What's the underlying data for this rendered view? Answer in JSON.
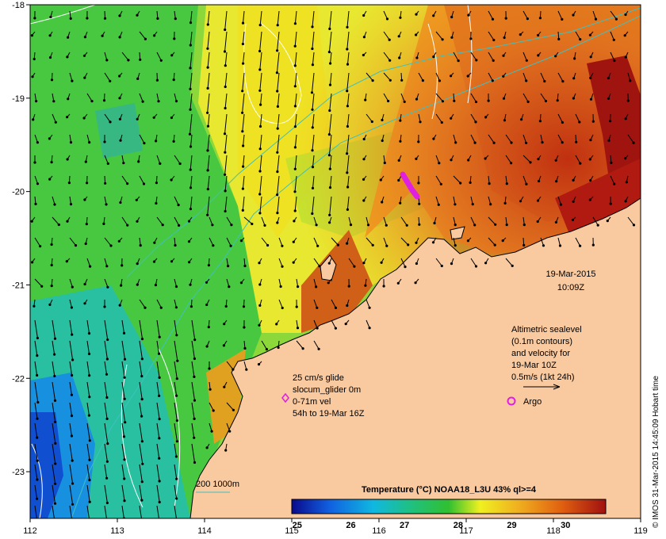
{
  "map": {
    "lon_min": 112,
    "lon_max": 119,
    "lat_min": -23.5,
    "lat_max": -18,
    "lon_ticks": [
      "112",
      "113",
      "114",
      "115",
      "116",
      "117",
      "118",
      "119"
    ],
    "lat_ticks": [
      "-18",
      "-19",
      "-20",
      "-21",
      "-22",
      "-23"
    ]
  },
  "timestamp": {
    "date": "19-Mar-2015",
    "time": "10:09Z"
  },
  "altimetry_note": {
    "line1": "Altimetric sealevel",
    "line2": "(0.1m contours)",
    "line3": "and velocity for",
    "line4": "19-Mar 10Z",
    "line5": "0.5m/s (1kt 24h)"
  },
  "glider_note": {
    "line1": "25 cm/s glide",
    "line2": "slocum_glider 0m",
    "line3": "0-71m vel",
    "line4": "54h to 19-Mar 16Z"
  },
  "argo_label": "Argo",
  "bathymetry_label": "200  1000m",
  "colorbar": {
    "title": "Temperature (°C) NOAA18_L3U 43% ql>=4",
    "ticks": [
      "25",
      "26",
      "27",
      "28",
      "29",
      "30"
    ],
    "stops": [
      "#0a0a8c",
      "#1060e0",
      "#10b8e0",
      "#20c080",
      "#30c030",
      "#f0f020",
      "#f0b020",
      "#e06010",
      "#a01010"
    ]
  },
  "credit": "© IMOS 31-Mar-2015 14:45:09 Hobart time",
  "colors": {
    "land": "#f9c9a0",
    "contour": "#ffffff",
    "bathymetry": "#40c0c0",
    "glider": "#e020e0",
    "argo": "#e020e0"
  }
}
